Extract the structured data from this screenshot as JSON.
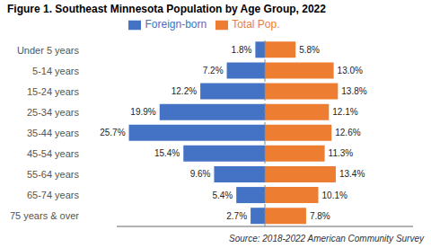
{
  "chart_data": {
    "type": "bar",
    "orientation": "horizontal",
    "title": "Figure 1. Southeast Minnesota Population by Age Group, 2022",
    "annotations": [
      "Source: 2018-2022 American Community Survey"
    ],
    "categories": [
      "Under 5 years",
      "5-14 years",
      "15-24 years",
      "25-34 years",
      "35-44 years",
      "45-54 years",
      "55-64 years",
      "65-74 years",
      "75 years & over"
    ],
    "series": [
      {
        "name": "Foreign-born",
        "color": "#4472C4",
        "values": [
          1.8,
          7.2,
          12.2,
          19.9,
          25.7,
          15.4,
          9.6,
          5.4,
          2.7
        ],
        "value_labels": [
          "1.8%",
          "7.2%",
          "12.2%",
          "19.9%",
          "25.7%",
          "15.4%",
          "9.6%",
          "5.4%",
          "2.7%"
        ]
      },
      {
        "name": "Total Pop.",
        "color": "#ED7D31",
        "values": [
          5.8,
          13.0,
          13.8,
          12.1,
          12.6,
          11.3,
          13.4,
          10.1,
          7.8
        ],
        "value_labels": [
          "5.8%",
          "13.0%",
          "13.8%",
          "12.1%",
          "12.6%",
          "11.3%",
          "13.4%",
          "10.1%",
          "7.8%"
        ]
      }
    ],
    "xlim": [
      -28,
      28
    ],
    "data_labels": true,
    "legend": "top",
    "tick_labels": "y",
    "grid": false
  }
}
